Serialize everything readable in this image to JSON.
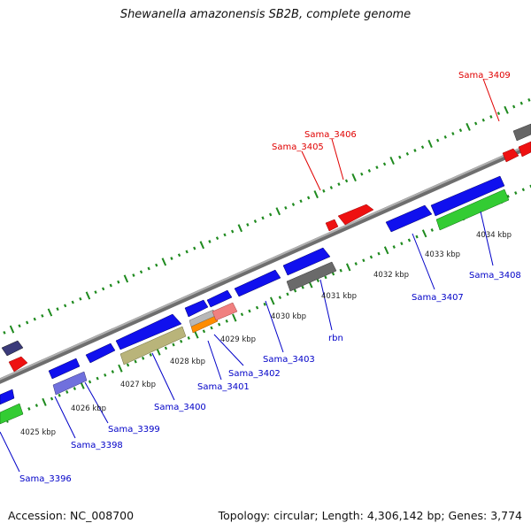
{
  "header": {
    "title": "Shewanella amazonensis SB2B, complete genome"
  },
  "footer": {
    "accession_text": "Accession: NC_008700",
    "topology_text": "Topology: circular; Length: 4,306,142 bp; Genes: 3,774"
  },
  "colors": {
    "backbone": "#8a8a8a",
    "tick": "#1e8a1e",
    "label_forward": "#e00000",
    "label_reverse": "#0000c8",
    "kbp_label": "#222222"
  },
  "scale_labels": [
    "4025 kbp",
    "4026 kbp",
    "4027 kbp",
    "4028 kbp",
    "4029 kbp",
    "4030 kbp",
    "4031 kbp",
    "4032 kbp",
    "4033 kbp",
    "4034 kbp"
  ],
  "gene_labels": [
    {
      "name": "Sama_3396",
      "strand": "reverse"
    },
    {
      "name": "Sama_3398",
      "strand": "reverse"
    },
    {
      "name": "Sama_3399",
      "strand": "reverse"
    },
    {
      "name": "Sama_3400",
      "strand": "reverse"
    },
    {
      "name": "Sama_3401",
      "strand": "reverse"
    },
    {
      "name": "Sama_3402",
      "strand": "reverse"
    },
    {
      "name": "Sama_3403",
      "strand": "reverse"
    },
    {
      "name": "rbn",
      "strand": "reverse"
    },
    {
      "name": "Sama_3407",
      "strand": "reverse"
    },
    {
      "name": "Sama_3408",
      "strand": "reverse"
    },
    {
      "name": "Sama_3405",
      "strand": "forward"
    },
    {
      "name": "Sama_3406",
      "strand": "forward"
    },
    {
      "name": "Sama_3409",
      "strand": "forward"
    }
  ]
}
